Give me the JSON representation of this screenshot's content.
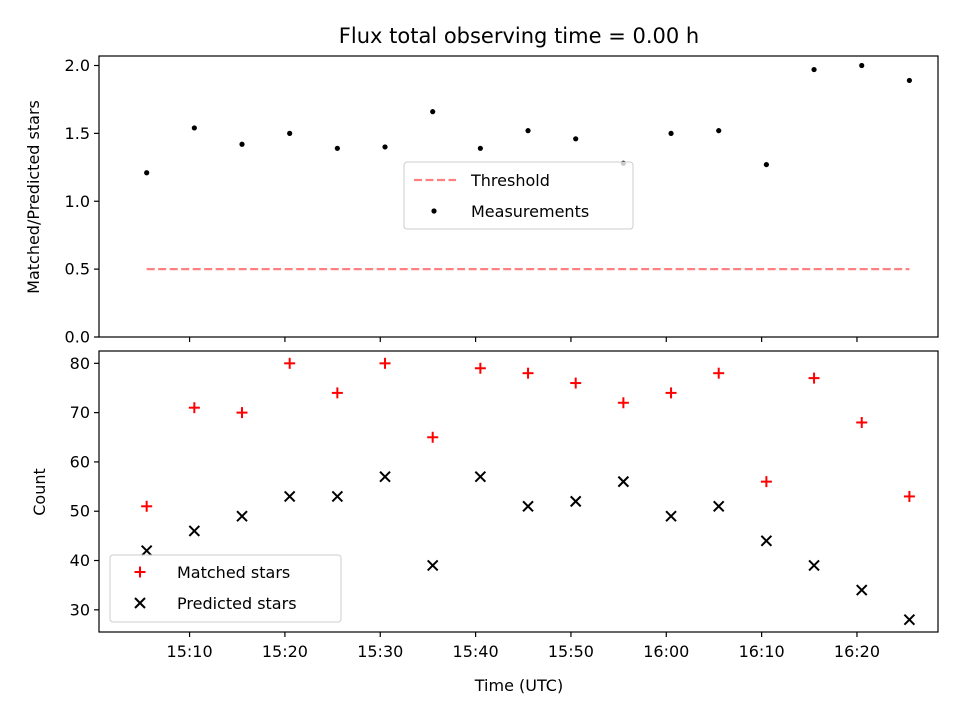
{
  "chart_data": [
    {
      "type": "scatter",
      "title": "Flux total observing time = 0.00 h",
      "ylabel": "Matched/Predicted stars",
      "xlabel": "",
      "ylim": [
        0,
        2.07
      ],
      "yticks": [
        0.0,
        0.5,
        1.0,
        1.5,
        2.0
      ],
      "ytick_labels": [
        "0.0",
        "0.5",
        "1.0",
        "1.5",
        "2.0"
      ],
      "legend_position": "center",
      "threshold": {
        "name": "Threshold",
        "value": 0.5,
        "color": "#ff8080",
        "style": "dashed",
        "x_start": "15:05:30",
        "x_end": "16:25:30"
      },
      "series": [
        {
          "name": "Measurements",
          "color": "#000000",
          "marker": "dot",
          "x": [
            "15:05:30",
            "15:10:30",
            "15:15:30",
            "15:20:30",
            "15:25:30",
            "15:30:30",
            "15:35:30",
            "15:40:30",
            "15:45:30",
            "15:50:30",
            "15:55:30",
            "16:00:30",
            "16:05:30",
            "16:10:30",
            "16:15:30",
            "16:20:30",
            "16:25:30"
          ],
          "values": [
            1.21,
            1.54,
            1.42,
            1.5,
            1.39,
            1.4,
            1.66,
            1.39,
            1.52,
            1.46,
            1.28,
            1.5,
            1.52,
            1.27,
            1.97,
            2.0,
            1.89
          ]
        }
      ]
    },
    {
      "type": "scatter",
      "title": "",
      "ylabel": "Count",
      "xlabel": "Time (UTC)",
      "ylim": [
        25.5,
        82.5
      ],
      "yticks": [
        30,
        40,
        50,
        60,
        70,
        80
      ],
      "ytick_labels": [
        "30",
        "40",
        "50",
        "60",
        "70",
        "80"
      ],
      "xlim_minutes": [
        0.5,
        88.5
      ],
      "x_origin": "15:00",
      "xticks_minutes": [
        10,
        20,
        30,
        40,
        50,
        60,
        70,
        80
      ],
      "xtick_labels": [
        "15:10",
        "15:20",
        "15:30",
        "15:40",
        "15:50",
        "16:00",
        "16:10",
        "16:20"
      ],
      "legend_position": "lower-left",
      "series": [
        {
          "name": "Matched stars",
          "color": "#ff0000",
          "marker": "plus",
          "x": [
            "15:05:30",
            "15:10:30",
            "15:15:30",
            "15:20:30",
            "15:25:30",
            "15:30:30",
            "15:35:30",
            "15:40:30",
            "15:45:30",
            "15:50:30",
            "15:55:30",
            "16:00:30",
            "16:05:30",
            "16:10:30",
            "16:15:30",
            "16:20:30",
            "16:25:30"
          ],
          "values": [
            51,
            71,
            70,
            80,
            74,
            80,
            65,
            79,
            78,
            76,
            72,
            74,
            78,
            56,
            77,
            68,
            53
          ]
        },
        {
          "name": "Predicted stars",
          "color": "#000000",
          "marker": "x",
          "x": [
            "15:05:30",
            "15:10:30",
            "15:15:30",
            "15:20:30",
            "15:25:30",
            "15:30:30",
            "15:35:30",
            "15:40:30",
            "15:45:30",
            "15:50:30",
            "15:55:30",
            "16:00:30",
            "16:05:30",
            "16:10:30",
            "16:15:30",
            "16:20:30",
            "16:25:30"
          ],
          "values": [
            42,
            46,
            49,
            53,
            53,
            57,
            39,
            57,
            51,
            52,
            56,
            49,
            51,
            44,
            39,
            34,
            28
          ]
        }
      ]
    }
  ]
}
